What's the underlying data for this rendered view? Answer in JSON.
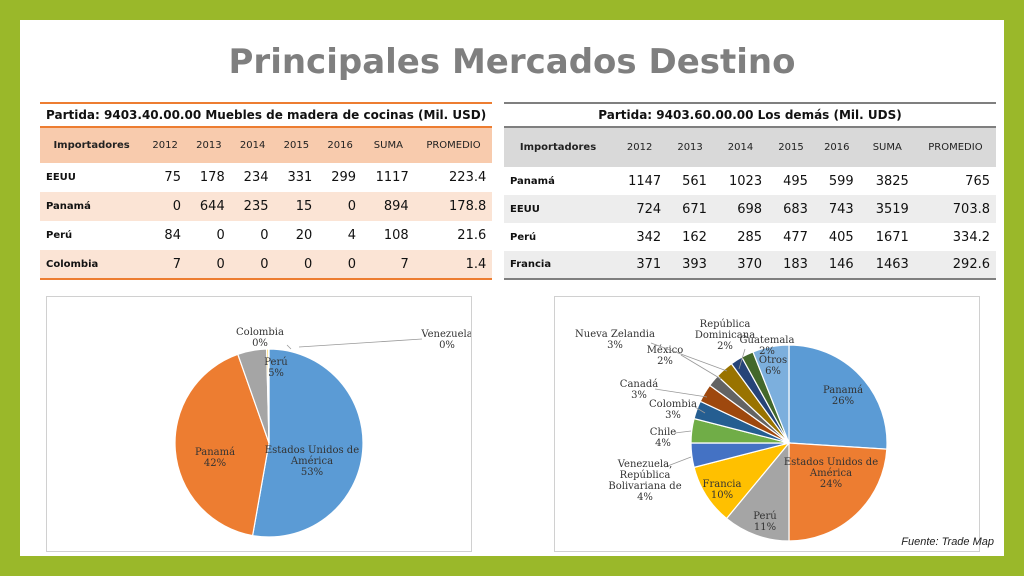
{
  "title": "Principales Mercados Destino",
  "source": "Fuente: Trade Map",
  "table_left": {
    "caption": "Partida: 9403.40.00.00 Muebles de madera de cocinas (Mil. USD)",
    "headers": [
      "Importadores",
      "2012",
      "2013",
      "2014",
      "2015",
      "2016",
      "SUMA",
      "PROMEDIO"
    ],
    "rows": [
      [
        "EEUU",
        "75",
        "178",
        "234",
        "331",
        "299",
        "1117",
        "223.4"
      ],
      [
        "Panamá",
        "0",
        "644",
        "235",
        "15",
        "0",
        "894",
        "178.8"
      ],
      [
        "Perú",
        "84",
        "0",
        "0",
        "20",
        "4",
        "108",
        "21.6"
      ],
      [
        "Colombia",
        "7",
        "0",
        "0",
        "0",
        "0",
        "7",
        "1.4"
      ]
    ]
  },
  "table_right": {
    "caption": "Partida: 9403.60.00.00 Los demás (Mil. UDS)",
    "headers": [
      "Importadores",
      "2012",
      "2013",
      "2014",
      "2015",
      "2016",
      "SUMA",
      "PROMEDIO"
    ],
    "rows": [
      [
        "Panamá",
        "1147",
        "561",
        "1023",
        "495",
        "599",
        "3825",
        "765"
      ],
      [
        "EEUU",
        "724",
        "671",
        "698",
        "683",
        "743",
        "3519",
        "703.8"
      ],
      [
        "Perú",
        "342",
        "162",
        "285",
        "477",
        "405",
        "1671",
        "334.2"
      ],
      [
        "Francia",
        "371",
        "393",
        "370",
        "183",
        "146",
        "1463",
        "292.6"
      ]
    ]
  },
  "chart_data": [
    {
      "type": "pie",
      "labels": [
        "Estados Unidos de América",
        "Panamá",
        "Perú",
        "Colombia",
        "Venezuela"
      ],
      "values": [
        53,
        42,
        5,
        0.3,
        0.1
      ],
      "value_labels": [
        "53%",
        "42%",
        "5%",
        "0%",
        "0%"
      ],
      "colors": [
        "#5b9bd5",
        "#ed7d31",
        "#a5a5a5",
        "#ffc000",
        "#4472c4"
      ]
    },
    {
      "type": "pie",
      "labels": [
        "Panamá",
        "Estados Unidos de América",
        "Perú",
        "Francia",
        "Venezuela, República Bolivariana de",
        "Chile",
        "Colombia",
        "Canadá",
        "México",
        "Nueva Zelandia",
        "República Dominicana",
        "Guatemala",
        "Otros"
      ],
      "values": [
        26,
        24,
        11,
        10,
        4,
        4,
        3,
        3,
        2,
        3,
        2,
        2,
        6
      ],
      "value_labels": [
        "26%",
        "24%",
        "11%",
        "10%",
        "4%",
        "4%",
        "3%",
        "3%",
        "2%",
        "3%",
        "2%",
        "2%",
        "6%"
      ],
      "colors": [
        "#5b9bd5",
        "#ed7d31",
        "#a5a5a5",
        "#ffc000",
        "#4472c4",
        "#70ad47",
        "#255e91",
        "#9e480e",
        "#636363",
        "#997300",
        "#264478",
        "#43682b",
        "#7cafdd"
      ]
    }
  ]
}
